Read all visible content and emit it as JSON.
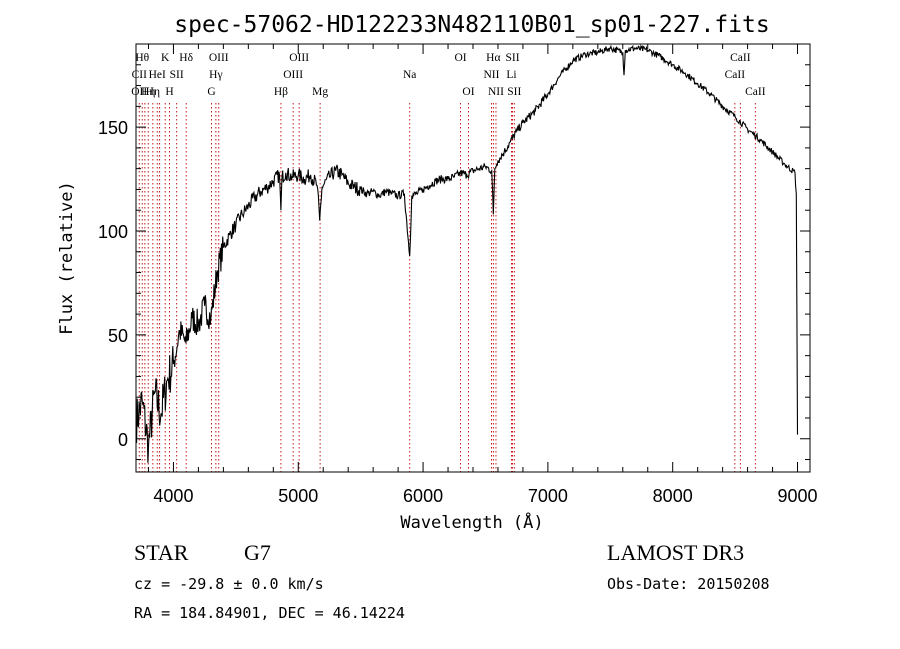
{
  "chart_data": {
    "type": "line",
    "title": "spec-57062-HD122233N482110B01_sp01-227.fits",
    "xlabel": "Wavelength (Å)",
    "ylabel": "Flux (relative)",
    "xlim": [
      3700,
      9100
    ],
    "ylim": [
      -16,
      190
    ],
    "xticks": [
      4000,
      5000,
      6000,
      7000,
      8000,
      9000
    ],
    "yticks": [
      0,
      50,
      100,
      150
    ],
    "line_color": "#c00000",
    "spectrum": [
      [
        3700,
        8
      ],
      [
        3750,
        18
      ],
      [
        3800,
        -4
      ],
      [
        3850,
        22
      ],
      [
        3900,
        12
      ],
      [
        3950,
        28
      ],
      [
        4000,
        36
      ],
      [
        4050,
        52
      ],
      [
        4100,
        46
      ],
      [
        4150,
        58
      ],
      [
        4200,
        55
      ],
      [
        4250,
        64
      ],
      [
        4300,
        58
      ],
      [
        4350,
        80
      ],
      [
        4400,
        92
      ],
      [
        4450,
        98
      ],
      [
        4500,
        103
      ],
      [
        4550,
        108
      ],
      [
        4600,
        112
      ],
      [
        4650,
        116
      ],
      [
        4700,
        119
      ],
      [
        4750,
        121
      ],
      [
        4800,
        124
      ],
      [
        4850,
        127
      ],
      [
        4861,
        110
      ],
      [
        4870,
        126
      ],
      [
        4900,
        128
      ],
      [
        4950,
        126
      ],
      [
        5000,
        127
      ],
      [
        5050,
        125
      ],
      [
        5100,
        127
      ],
      [
        5150,
        122
      ],
      [
        5172,
        105
      ],
      [
        5190,
        121
      ],
      [
        5250,
        126
      ],
      [
        5300,
        129
      ],
      [
        5350,
        127
      ],
      [
        5400,
        123
      ],
      [
        5450,
        121
      ],
      [
        5500,
        120
      ],
      [
        5550,
        118
      ],
      [
        5600,
        119
      ],
      [
        5650,
        117
      ],
      [
        5700,
        119
      ],
      [
        5750,
        118
      ],
      [
        5800,
        117
      ],
      [
        5850,
        118
      ],
      [
        5893,
        88
      ],
      [
        5910,
        117
      ],
      [
        5950,
        118
      ],
      [
        6000,
        120
      ],
      [
        6050,
        122
      ],
      [
        6100,
        124
      ],
      [
        6150,
        125
      ],
      [
        6200,
        125
      ],
      [
        6250,
        126
      ],
      [
        6300,
        128
      ],
      [
        6350,
        127
      ],
      [
        6400,
        129
      ],
      [
        6450,
        130
      ],
      [
        6500,
        131
      ],
      [
        6550,
        129
      ],
      [
        6563,
        108
      ],
      [
        6575,
        130
      ],
      [
        6600,
        134
      ],
      [
        6650,
        138
      ],
      [
        6700,
        143
      ],
      [
        6750,
        148
      ],
      [
        6800,
        152
      ],
      [
        6900,
        158
      ],
      [
        7000,
        166
      ],
      [
        7100,
        175
      ],
      [
        7200,
        182
      ],
      [
        7300,
        185
      ],
      [
        7400,
        186
      ],
      [
        7500,
        188
      ],
      [
        7600,
        186
      ],
      [
        7610,
        175
      ],
      [
        7620,
        187
      ],
      [
        7700,
        188
      ],
      [
        7800,
        187
      ],
      [
        7900,
        184
      ],
      [
        8000,
        180
      ],
      [
        8100,
        176
      ],
      [
        8200,
        171
      ],
      [
        8300,
        166
      ],
      [
        8400,
        160
      ],
      [
        8500,
        155
      ],
      [
        8600,
        149
      ],
      [
        8700,
        144
      ],
      [
        8800,
        138
      ],
      [
        8900,
        132
      ],
      [
        8980,
        128
      ],
      [
        8990,
        118
      ],
      [
        9000,
        2
      ]
    ],
    "lines": [
      {
        "wl": 3726,
        "labels": [
          {
            "text": "CII",
            "row": 1
          },
          {
            "text": "OII",
            "row": 2
          }
        ]
      },
      {
        "wl": 3750,
        "labels": [
          {
            "text": "Hθ",
            "row": 0
          }
        ]
      },
      {
        "wl": 3771,
        "labels": [
          {
            "text": "",
            "row": 0
          }
        ]
      },
      {
        "wl": 3798,
        "labels": [
          {
            "text": "Hη",
            "row": 2
          }
        ]
      },
      {
        "wl": 3835,
        "labels": [
          {
            "text": "Hη",
            "row": 2
          }
        ]
      },
      {
        "wl": 3870,
        "labels": [
          {
            "text": "HeI",
            "row": 1
          }
        ]
      },
      {
        "wl": 3889,
        "labels": [
          {
            "text": "",
            "row": 0
          }
        ]
      },
      {
        "wl": 3934,
        "labels": [
          {
            "text": "K",
            "row": 0
          }
        ]
      },
      {
        "wl": 3969,
        "labels": [
          {
            "text": "H",
            "row": 2
          }
        ]
      },
      {
        "wl": 4026,
        "labels": [
          {
            "text": "SII",
            "row": 1
          }
        ]
      },
      {
        "wl": 4102,
        "labels": [
          {
            "text": "Hδ",
            "row": 0
          }
        ]
      },
      {
        "wl": 4305,
        "labels": [
          {
            "text": "G",
            "row": 2
          }
        ]
      },
      {
        "wl": 4340,
        "labels": [
          {
            "text": "Hγ",
            "row": 1
          }
        ]
      },
      {
        "wl": 4363,
        "labels": [
          {
            "text": "OIII",
            "row": 0
          }
        ]
      },
      {
        "wl": 4861,
        "labels": [
          {
            "text": "Hβ",
            "row": 2
          }
        ]
      },
      {
        "wl": 4959,
        "labels": [
          {
            "text": "OIII",
            "row": 1
          }
        ]
      },
      {
        "wl": 5007,
        "labels": [
          {
            "text": "OIII",
            "row": 0
          }
        ]
      },
      {
        "wl": 5175,
        "labels": [
          {
            "text": "Mg",
            "row": 2
          }
        ]
      },
      {
        "wl": 5893,
        "labels": [
          {
            "text": "Na",
            "row": 1
          }
        ]
      },
      {
        "wl": 6300,
        "labels": [
          {
            "text": "OI",
            "row": 0
          }
        ]
      },
      {
        "wl": 6364,
        "labels": [
          {
            "text": "OI",
            "row": 2
          }
        ]
      },
      {
        "wl": 6548,
        "labels": [
          {
            "text": "NII",
            "row": 1
          }
        ]
      },
      {
        "wl": 6563,
        "labels": [
          {
            "text": "Hα",
            "row": 0
          }
        ]
      },
      {
        "wl": 6584,
        "labels": [
          {
            "text": "NII",
            "row": 2
          }
        ]
      },
      {
        "wl": 6708,
        "labels": [
          {
            "text": "Li",
            "row": 1
          }
        ]
      },
      {
        "wl": 6717,
        "labels": [
          {
            "text": "SII",
            "row": 0
          }
        ]
      },
      {
        "wl": 6731,
        "labels": [
          {
            "text": "SII",
            "row": 2
          }
        ]
      },
      {
        "wl": 8498,
        "labels": [
          {
            "text": "CaII",
            "row": 1
          }
        ]
      },
      {
        "wl": 8542,
        "labels": [
          {
            "text": "CaII",
            "row": 0
          }
        ]
      },
      {
        "wl": 8662,
        "labels": [
          {
            "text": "CaII",
            "row": 2
          }
        ]
      }
    ]
  },
  "info": {
    "object_class": "STAR",
    "subclass": "G7",
    "survey": "LAMOST DR3",
    "cz": "cz = -29.8 ± 0.0 km/s",
    "obs_date": "Obs-Date: 20150208",
    "coords": "RA = 184.84901, DEC =  46.14224"
  }
}
